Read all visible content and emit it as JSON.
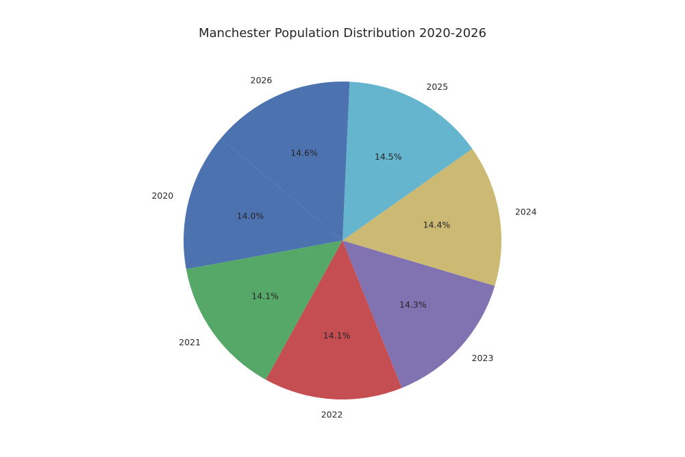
{
  "chart_data": {
    "type": "pie",
    "title": "Manchester Population Distribution 2020-2026",
    "slices": [
      {
        "label": "2020",
        "percent": 14.0,
        "display": "14.0%",
        "color": "#4C72B0"
      },
      {
        "label": "2021",
        "percent": 14.1,
        "display": "14.1%",
        "color": "#55A868"
      },
      {
        "label": "2022",
        "percent": 14.1,
        "display": "14.1%",
        "color": "#C44E52"
      },
      {
        "label": "2023",
        "percent": 14.3,
        "display": "14.3%",
        "color": "#8172B2"
      },
      {
        "label": "2024",
        "percent": 14.4,
        "display": "14.4%",
        "color": "#CCB974"
      },
      {
        "label": "2025",
        "percent": 14.5,
        "display": "14.5%",
        "color": "#64B5CD"
      },
      {
        "label": "2026",
        "percent": 14.6,
        "display": "14.6%",
        "color": "#4C72B0"
      }
    ],
    "start_angle_deg": 140,
    "direction": "counterclockwise"
  }
}
